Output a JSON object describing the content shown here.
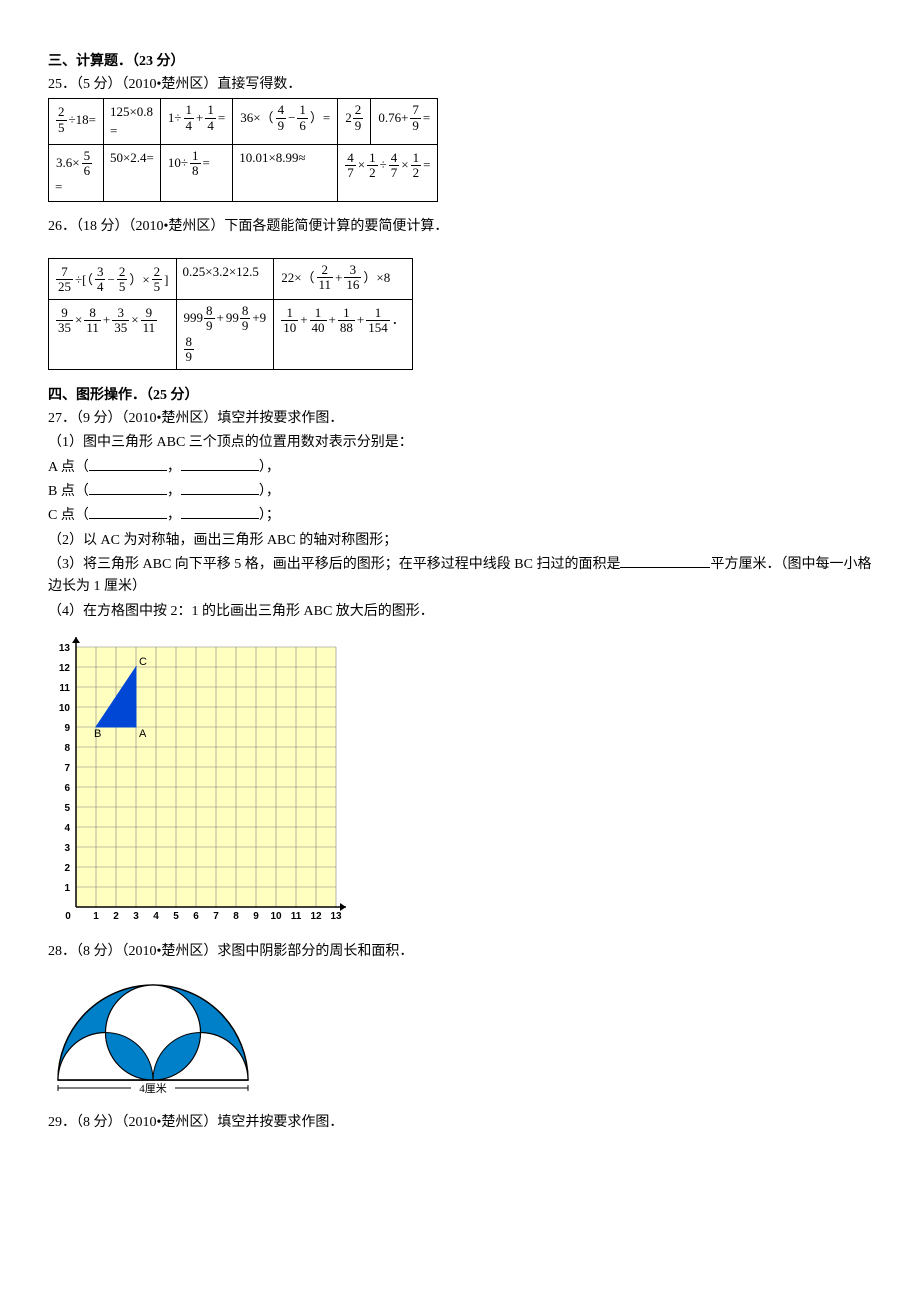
{
  "section3": {
    "title": "三、计算题．（23 分）",
    "q25": {
      "prefix": "25．（5 分）（2010•楚州区）直接写得数．",
      "cells": [
        [
          "2/5 ÷18=",
          "125×0.8=",
          "1÷ 1/4 + 1/4 =",
          "36×（ 4/9 − 1/6 ）=",
          "2 2/9",
          "0.76+ 7/9 ="
        ],
        [
          "3.6× 5/6 =",
          "50×2.4=",
          "10÷ 1/8 =",
          "10.01×8.99≈",
          "4/7 × 1/2 ÷ 4/7 × 1/2 =",
          ""
        ]
      ]
    },
    "q26": {
      "prefix": "26．（18 分）（2010•楚州区）下面各题能简便计算的要简便计算．",
      "cells": [
        [
          "7/25 ÷[（ 3/4 − 2/5 ）× 2/5 ]",
          "0.25×3.2×12.5",
          "22×（ 2/11 + 3/16 ）×8"
        ],
        [
          "9/35 × 8/11 + 3/35 × 9/11",
          "999 8/9 +99 8/9 +9 8/9",
          "1/10 + 1/40 + 1/88 + 1/154 ．"
        ]
      ]
    }
  },
  "section4": {
    "title": "四、图形操作．（25 分）",
    "q27": {
      "prefix": "27．（9 分）（2010•楚州区）填空并按要求作图．",
      "sub1": "（1）图中三角形 ABC 三个顶点的位置用数对表示分别是：",
      "a_label": "A 点（",
      "b_label": "B 点（",
      "c_label": "C 点（",
      "comma": "，",
      "close_comma": "），",
      "close_semi": "）；",
      "sub2": "（2）以 AC 为对称轴，画出三角形 ABC 的轴对称图形；",
      "sub3_a": "（3）将三角形 ABC 向下平移 5 格，画出平移后的图形；在平移过程中线段 BC 扫过的面积是",
      "sub3_b": "平方厘米．（图中每一小格边长为 1 厘米）",
      "sub4": "（4）在方格图中按 2：1 的比画出三角形 ABC 放大后的图形．",
      "grid": {
        "size": 13,
        "cell": 20,
        "triangle": {
          "B": [
            1,
            9
          ],
          "A": [
            3,
            9
          ],
          "C": [
            3,
            12
          ]
        },
        "triangleColor": "#0047d6",
        "axisColor": "#000000",
        "gridColor": "#808080",
        "bgHighlight": "#ffffc0",
        "xLabels": [
          "0",
          "1",
          "2",
          "3",
          "4",
          "5",
          "6",
          "7",
          "8",
          "9",
          "10",
          "11",
          "12",
          "13"
        ],
        "yLabels": [
          "1",
          "2",
          "3",
          "4",
          "5",
          "6",
          "7",
          "8",
          "9",
          "10",
          "11",
          "12",
          "13"
        ]
      }
    },
    "q28": {
      "prefix": "28．（8 分）（2010•楚州区）求图中阴影部分的周长和面积．",
      "shape": {
        "widthLabel": "4厘米",
        "fillColor": "#0080c8",
        "lineColor": "#000000"
      }
    },
    "q29": {
      "prefix": "29．（8 分）（2010•楚州区）填空并按要求作图．"
    }
  }
}
